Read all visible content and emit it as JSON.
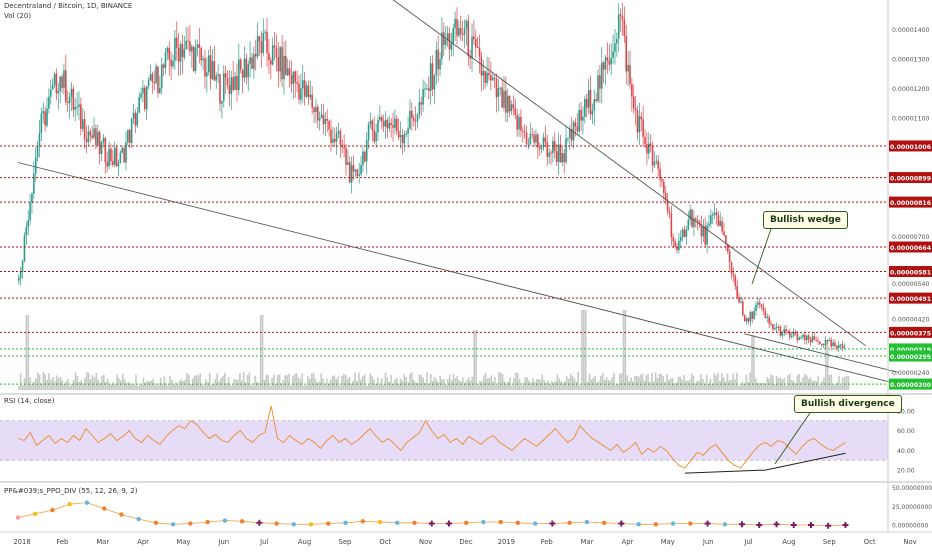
{
  "header": {
    "symbol_title": "Decentraland / Bitcoin, 1D, BINANCE",
    "volume_label": "Vol (20)",
    "rsi_label": "RSI (14, close)",
    "ppo_label": "PP&#039;s_PPO_DIV (55, 12, 26, 9, 2)"
  },
  "annotations": {
    "wedge": "Bullish wedge",
    "divergence": "Bullish divergence"
  },
  "colors": {
    "up": "#2a9a8a",
    "down": "#e0454a",
    "resistance": "#b01010",
    "support": "#22c030",
    "rsi_line": "#f08a2a",
    "rsi_band": "#e6dcf7",
    "volume": "#c8c8c8",
    "trend": "#555555"
  },
  "chart_data": [
    {
      "type": "candlestick",
      "name": "price",
      "x_ticks": [
        "2018",
        "Feb",
        "Mar",
        "Apr",
        "May",
        "Jun",
        "Jul",
        "Aug",
        "Sep",
        "Oct",
        "Nov",
        "Dec",
        "2019",
        "Feb",
        "Mar",
        "Apr",
        "May",
        "Jun",
        "Jul",
        "Aug",
        "Sep",
        "Oct",
        "Nov"
      ],
      "x_range": [
        0,
        22
      ],
      "y_range": [
        1.8e-06,
        1.5e-05
      ],
      "y_ticks": [
        "0.00001400",
        "0.00001300",
        "0.00001200",
        "0.00001100",
        "0.00000700",
        "0.00000540",
        "0.00000420",
        "0.00000240"
      ],
      "y_tick_values": [
        1.4e-05,
        1.3e-05,
        1.2e-05,
        1.1e-05,
        7e-06,
        5.4e-06,
        4.2e-06,
        2.4e-06
      ],
      "trend_path": [
        [
          0,
          5.5e-06
        ],
        [
          0.5,
          1.05e-05
        ],
        [
          1,
          1.25e-05
        ],
        [
          1.5,
          1.1e-05
        ],
        [
          2,
          1e-05
        ],
        [
          2.5,
          9.5e-06
        ],
        [
          3,
          1.15e-05
        ],
        [
          3.5,
          1.25e-05
        ],
        [
          4,
          1.35e-05
        ],
        [
          4.5,
          1.3e-05
        ],
        [
          5,
          1.2e-05
        ],
        [
          5.5,
          1.25e-05
        ],
        [
          6,
          1.35e-05
        ],
        [
          6.5,
          1.28e-05
        ],
        [
          7,
          1.2e-05
        ],
        [
          7.5,
          1.1e-05
        ],
        [
          8,
          1e-05
        ],
        [
          8.3,
          8.8e-06
        ],
        [
          8.7,
          1.05e-05
        ],
        [
          9,
          1.1e-05
        ],
        [
          9.5,
          1.05e-05
        ],
        [
          10,
          1.15e-05
        ],
        [
          10.5,
          1.35e-05
        ],
        [
          11,
          1.4e-05
        ],
        [
          11.5,
          1.25e-05
        ],
        [
          12,
          1.15e-05
        ],
        [
          12.5,
          1.05e-05
        ],
        [
          13,
          1e-05
        ],
        [
          13.5,
          9.8e-06
        ],
        [
          14,
          1.12e-05
        ],
        [
          14.5,
          1.25e-05
        ],
        [
          14.9,
          1.45e-05
        ],
        [
          15.2,
          1.15e-05
        ],
        [
          15.5,
          1.03e-05
        ],
        [
          16,
          8.5e-06
        ],
        [
          16.3,
          6.3e-06
        ],
        [
          16.6,
          7.8e-06
        ],
        [
          17,
          7e-06
        ],
        [
          17.3,
          7.8e-06
        ],
        [
          17.6,
          6.2e-06
        ],
        [
          18,
          4e-06
        ],
        [
          18.3,
          4.7e-06
        ],
        [
          18.6,
          4e-06
        ],
        [
          19,
          3.7e-06
        ],
        [
          19.5,
          3.5e-06
        ],
        [
          20,
          3.4e-06
        ],
        [
          20.3,
          3.2e-06
        ],
        [
          20.5,
          3.3e-06
        ]
      ],
      "volume_spikes": [
        [
          0.2,
          0.9
        ],
        [
          6.0,
          0.9
        ],
        [
          11.3,
          0.6
        ],
        [
          14.0,
          1.0
        ],
        [
          15.0,
          1.0
        ],
        [
          18.2,
          0.5
        ],
        [
          20.0,
          0.4
        ]
      ],
      "horizontal_levels": [
        {
          "value": 1.006e-05,
          "label": "0.00001006",
          "kind": "resistance"
        },
        {
          "value": 8.99e-06,
          "label": "0.00000899",
          "kind": "resistance"
        },
        {
          "value": 8.16e-06,
          "label": "0.00000816",
          "kind": "resistance"
        },
        {
          "value": 6.64e-06,
          "label": "0.00000664",
          "kind": "resistance"
        },
        {
          "value": 5.81e-06,
          "label": "0.00000581",
          "kind": "resistance"
        },
        {
          "value": 4.91e-06,
          "label": "0.00000491",
          "kind": "resistance"
        },
        {
          "value": 3.75e-06,
          "label": "0.00000375",
          "kind": "resistance"
        },
        {
          "value": 3.19e-06,
          "label": "0.00000319",
          "kind": "support"
        },
        {
          "value": 2.95e-06,
          "label": "0.00000295",
          "kind": "support"
        },
        {
          "value": 2e-06,
          "label": "0.00000200",
          "kind": "support"
        }
      ],
      "trendlines": [
        [
          [
            0,
            9.5e-06
          ],
          [
            21.8,
            2e-06
          ]
        ],
        [
          [
            8.3,
            1.6e-05
          ],
          [
            21.0,
            3.3e-06
          ]
        ],
        [
          [
            18.0,
            3.7e-06
          ],
          [
            21.8,
            2.4e-06
          ]
        ]
      ]
    },
    {
      "type": "line",
      "name": "RSI",
      "y_range": [
        10,
        95
      ],
      "y_ticks": [
        "80.00",
        "60.00",
        "40.00",
        "20.00"
      ],
      "y_tick_values": [
        80,
        60,
        40,
        20
      ],
      "band": [
        30,
        70
      ],
      "values": [
        52,
        50,
        58,
        45,
        50,
        55,
        47,
        52,
        48,
        55,
        50,
        62,
        55,
        48,
        52,
        57,
        50,
        54,
        60,
        52,
        48,
        55,
        50,
        46,
        54,
        60,
        65,
        62,
        70,
        66,
        58,
        52,
        56,
        50,
        48,
        55,
        60,
        52,
        48,
        55,
        58,
        85,
        52,
        48,
        55,
        50,
        46,
        52,
        48,
        42,
        50,
        55,
        48,
        52,
        46,
        50,
        56,
        62,
        54,
        48,
        52,
        46,
        40,
        48,
        53,
        58,
        70,
        60,
        52,
        56,
        48,
        52,
        46,
        54,
        50,
        46,
        52,
        55,
        48,
        44,
        40,
        46,
        52,
        48,
        44,
        50,
        56,
        62,
        55,
        48,
        52,
        65,
        58,
        52,
        48,
        44,
        40,
        46,
        38,
        42,
        48,
        36,
        42,
        38,
        44,
        40,
        32,
        25,
        22,
        30,
        38,
        35,
        42,
        46,
        38,
        30,
        25,
        22,
        30,
        38,
        45,
        48,
        44,
        50,
        48,
        42,
        36,
        44,
        50,
        52,
        46,
        42,
        40,
        44,
        48
      ],
      "divergence_line": [
        [
          108,
          17
        ],
        [
          121,
          20
        ],
        [
          134,
          37
        ]
      ]
    },
    {
      "type": "scatter",
      "name": "PPO",
      "y_range": [
        -4,
        55
      ],
      "y_ticks": [
        "50.00000000",
        "25.00000000",
        "0.00000000"
      ],
      "y_tick_values": [
        50,
        25,
        0
      ],
      "line": [
        10,
        15,
        20,
        28,
        30,
        22,
        14,
        8,
        3,
        1,
        2,
        4,
        6,
        5,
        3,
        2,
        1,
        1,
        2,
        3,
        5,
        4,
        3,
        3,
        2,
        2,
        3,
        4,
        4,
        3,
        2,
        2,
        3,
        4,
        3,
        2,
        1,
        1,
        2,
        2,
        2,
        1,
        1,
        0,
        1,
        0,
        0,
        -1,
        0
      ],
      "dot_colors": [
        "#f5a0a0",
        "#f0c020",
        "#f08030",
        "#f0c020",
        "#60b8e0",
        "#f08030",
        "#f08030",
        "#60b8e0",
        "#f08030",
        "#60b8e0",
        "#f08030",
        "#f08030",
        "#60b8e0",
        "#f08030",
        "#7a2060",
        "#f08030",
        "#60b8e0",
        "#f0c020",
        "#f08030",
        "#60b8e0",
        "#f08030",
        "#f0c020",
        "#60b8e0",
        "#f08030",
        "#7a2060",
        "#7a2060",
        "#f08030",
        "#60b8e0",
        "#f08030",
        "#f08030",
        "#60b8e0",
        "#7a2060",
        "#f08030",
        "#60b8e0",
        "#f08030",
        "#7a2060",
        "#60b8e0",
        "#f08030",
        "#60b8e0",
        "#f08030",
        "#7a2060",
        "#60b8e0",
        "#7a2060",
        "#7a2060",
        "#7a2060",
        "#7a2060",
        "#7a2060",
        "#7a2060",
        "#7a2060"
      ]
    }
  ]
}
